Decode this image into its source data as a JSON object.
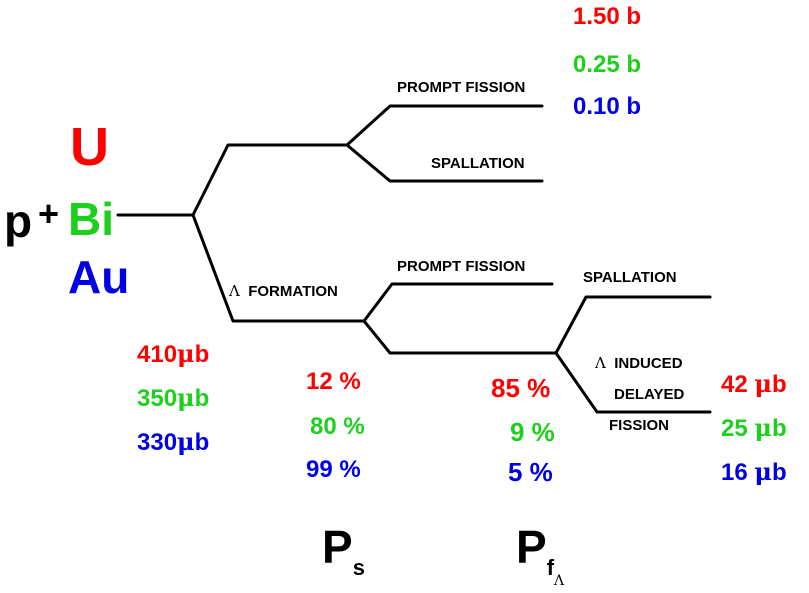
{
  "reaction": {
    "projectile": "p",
    "plus": "+",
    "targets": [
      {
        "label": "U",
        "color": "#ff0000"
      },
      {
        "label": "Bi",
        "color": "#1ed01e"
      },
      {
        "label": "Au",
        "color": "#0000e6"
      }
    ]
  },
  "labels": {
    "prompt_fission_top": "PROMPT FISSION",
    "spallation_top": "SPALLATION",
    "lambda_symbol": "Λ",
    "lambda_formation": "FORMATION",
    "prompt_fission_mid": "PROMPT FISSION",
    "spallation_right": "SPALLATION",
    "induced": "INDUCED",
    "delayed": "DELAYED",
    "fission": "FISSION"
  },
  "values": {
    "prompt_fission_cross_sections": [
      "1.50 b",
      "0.25 b",
      "0.10 b"
    ],
    "lambda_formation_numbers": [
      "410",
      "350",
      "330"
    ],
    "ps_percents": [
      "12 %",
      "80 %",
      "99 %"
    ],
    "pf_percents": [
      "85 %",
      "9 %",
      "5 %"
    ],
    "delayed_fission_numbers": [
      "42",
      "25",
      "16"
    ],
    "unit_mu": "μ",
    "unit_b": "b"
  },
  "axis": {
    "ps_main": "P",
    "ps_sub": "s",
    "pf_main": "P",
    "pf_sub": "f",
    "pf_subsub": "Λ"
  },
  "colors": {
    "red": "#ff0000",
    "green": "#1ed01e",
    "blue": "#0000e6",
    "line": "#000000"
  }
}
